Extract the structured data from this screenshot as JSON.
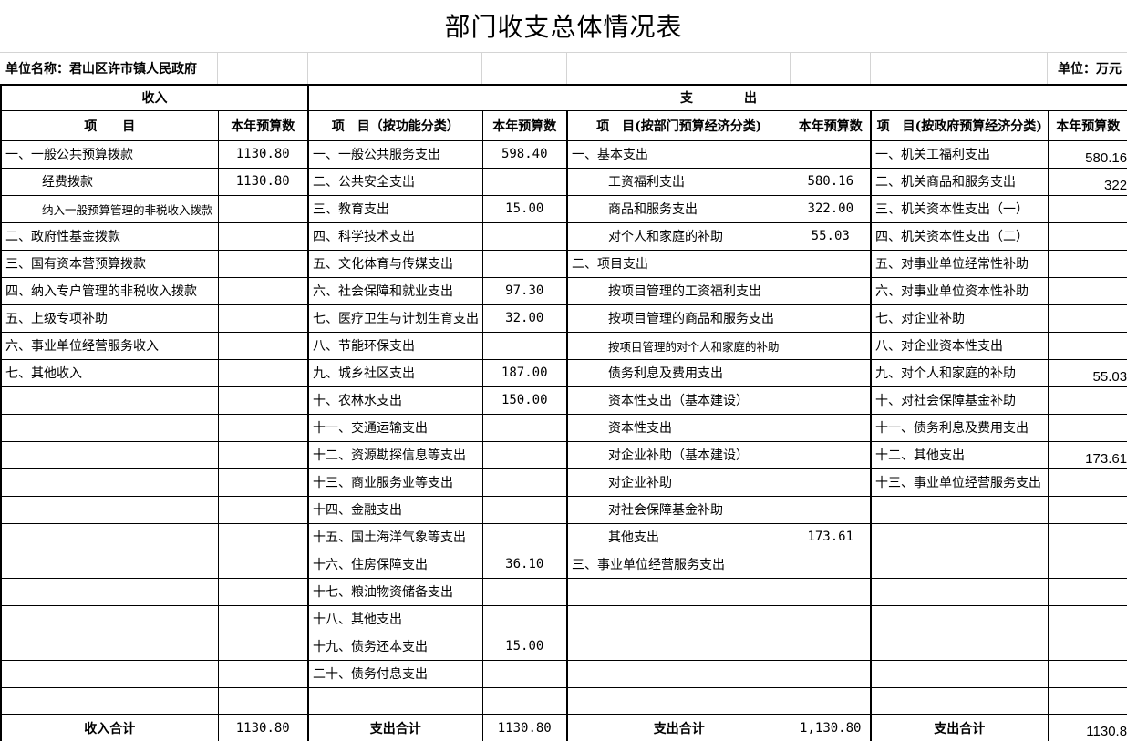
{
  "title": "部门收支总体情况表",
  "meta": {
    "unit_name": "单位名称：君山区许市镇人民政府",
    "unit": "单位：万元"
  },
  "sections": {
    "income": "收入",
    "expenditure": "支　　　　出"
  },
  "columns": {
    "income_item": "项　　目",
    "budget": "本年预算数",
    "func_item": "项　目（按功能分类）",
    "dept_item": "项　目(按部门预算经济分类)",
    "gov_item": "项　目(按政府预算经济分类)"
  },
  "income": [
    {
      "label": "一、一般公共预算拨款",
      "value": "1130.80"
    },
    {
      "label": "经费拨款",
      "value": "1130.80",
      "indent": 1
    },
    {
      "label": "纳入一般预算管理的非税收入拨款",
      "value": "",
      "indent": 1,
      "shrink": true
    },
    {
      "label": "二、政府性基金拨款",
      "value": ""
    },
    {
      "label": "三、国有资本营预算拨款",
      "value": ""
    },
    {
      "label": "四、纳入专户管理的非税收入拨款",
      "value": ""
    },
    {
      "label": "五、上级专项补助",
      "value": ""
    },
    {
      "label": "六、事业单位经营服务收入",
      "value": ""
    },
    {
      "label": "七、其他收入",
      "value": ""
    },
    {
      "label": "",
      "value": ""
    },
    {
      "label": "",
      "value": ""
    },
    {
      "label": "",
      "value": ""
    },
    {
      "label": "",
      "value": ""
    },
    {
      "label": "",
      "value": ""
    },
    {
      "label": "",
      "value": ""
    },
    {
      "label": "",
      "value": ""
    },
    {
      "label": "",
      "value": ""
    },
    {
      "label": "",
      "value": ""
    },
    {
      "label": "",
      "value": ""
    },
    {
      "label": "",
      "value": ""
    },
    {
      "label": "",
      "value": ""
    }
  ],
  "functional": [
    {
      "label": "一、一般公共服务支出",
      "value": "598.40"
    },
    {
      "label": "二、公共安全支出",
      "value": ""
    },
    {
      "label": "三、教育支出",
      "value": "15.00"
    },
    {
      "label": "四、科学技术支出",
      "value": ""
    },
    {
      "label": "五、文化体育与传媒支出",
      "value": ""
    },
    {
      "label": "六、社会保障和就业支出",
      "value": "97.30"
    },
    {
      "label": "七、医疗卫生与计划生育支出",
      "value": "32.00"
    },
    {
      "label": "八、节能环保支出",
      "value": ""
    },
    {
      "label": "九、城乡社区支出",
      "value": "187.00"
    },
    {
      "label": "十、农林水支出",
      "value": "150.00"
    },
    {
      "label": "十一、交通运输支出",
      "value": ""
    },
    {
      "label": "十二、资源勘探信息等支出",
      "value": ""
    },
    {
      "label": "十三、商业服务业等支出",
      "value": ""
    },
    {
      "label": "十四、金融支出",
      "value": ""
    },
    {
      "label": "十五、国土海洋气象等支出",
      "value": ""
    },
    {
      "label": "十六、住房保障支出",
      "value": "36.10"
    },
    {
      "label": "十七、粮油物资储备支出",
      "value": ""
    },
    {
      "label": "十八、其他支出",
      "value": ""
    },
    {
      "label": "十九、债务还本支出",
      "value": "15.00"
    },
    {
      "label": "二十、债务付息支出",
      "value": ""
    },
    {
      "label": "",
      "value": ""
    }
  ],
  "dept_econ": [
    {
      "label": "一、基本支出",
      "value": ""
    },
    {
      "label": "工资福利支出",
      "value": "580.16",
      "indent": 1
    },
    {
      "label": "商品和服务支出",
      "value": "322.00",
      "indent": 1
    },
    {
      "label": "对个人和家庭的补助",
      "value": "55.03",
      "indent": 1
    },
    {
      "label": "二、项目支出",
      "value": ""
    },
    {
      "label": "按项目管理的工资福利支出",
      "value": "",
      "indent": 1
    },
    {
      "label": "按项目管理的商品和服务支出",
      "value": "",
      "indent": 1
    },
    {
      "label": "按项目管理的对个人和家庭的补助",
      "value": "",
      "indent": 1,
      "shrink": true
    },
    {
      "label": "债务利息及费用支出",
      "value": "",
      "indent": 1
    },
    {
      "label": "资本性支出（基本建设）",
      "value": "",
      "indent": 1
    },
    {
      "label": "资本性支出",
      "value": "",
      "indent": 1
    },
    {
      "label": "对企业补助（基本建设）",
      "value": "",
      "indent": 1
    },
    {
      "label": "对企业补助",
      "value": "",
      "indent": 1
    },
    {
      "label": "对社会保障基金补助",
      "value": "",
      "indent": 1
    },
    {
      "label": "其他支出",
      "value": "173.61",
      "indent": 1
    },
    {
      "label": "三、事业单位经营服务支出",
      "value": ""
    },
    {
      "label": "",
      "value": ""
    },
    {
      "label": "",
      "value": ""
    },
    {
      "label": "",
      "value": ""
    },
    {
      "label": "",
      "value": ""
    },
    {
      "label": "",
      "value": ""
    }
  ],
  "gov_econ": [
    {
      "label": "一、机关工福利支出",
      "value": "580.16"
    },
    {
      "label": "二、机关商品和服务支出",
      "value": "322"
    },
    {
      "label": "三、机关资本性支出（一）",
      "value": ""
    },
    {
      "label": "四、机关资本性支出（二）",
      "value": ""
    },
    {
      "label": "五、对事业单位经常性补助",
      "value": ""
    },
    {
      "label": "六、对事业单位资本性补助",
      "value": ""
    },
    {
      "label": "七、对企业补助",
      "value": ""
    },
    {
      "label": "八、对企业资本性支出",
      "value": ""
    },
    {
      "label": "九、对个人和家庭的补助",
      "value": "55.03"
    },
    {
      "label": "十、对社会保障基金补助",
      "value": ""
    },
    {
      "label": "十一、债务利息及费用支出",
      "value": ""
    },
    {
      "label": "十二、其他支出",
      "value": "173.61"
    },
    {
      "label": "十三、事业单位经营服务支出",
      "value": ""
    },
    {
      "label": "",
      "value": ""
    },
    {
      "label": "",
      "value": ""
    },
    {
      "label": "",
      "value": ""
    },
    {
      "label": "",
      "value": ""
    },
    {
      "label": "",
      "value": ""
    },
    {
      "label": "",
      "value": ""
    },
    {
      "label": "",
      "value": ""
    },
    {
      "label": "",
      "value": ""
    }
  ],
  "totals": {
    "income_label": "收入合计",
    "income_value": "1130.80",
    "func_label": "支出合计",
    "func_value": "1130.80",
    "dept_label": "支出合计",
    "dept_value": "1,130.80",
    "gov_label": "支出合计",
    "gov_value": "1130.8"
  }
}
